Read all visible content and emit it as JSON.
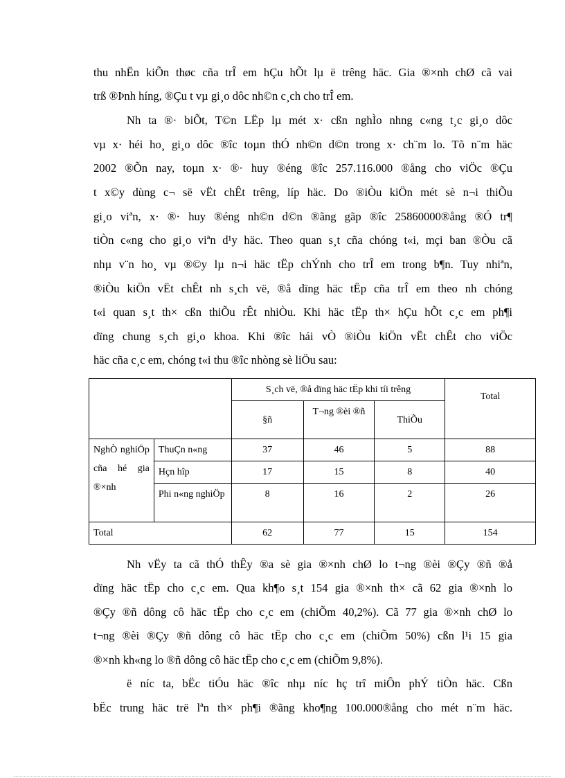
{
  "paragraph1": [
    "thu nhËn kiÕn thøc cña trÎ em hÇu hÕt lµ ë tr­êng  häc. Gia ®×nh chØ cã vai",
    "trß ®Þnh h­íng,  ®Çu t­  vµ gi¸o dôc nh©n c¸ch cho trÎ em."
  ],
  "paragraph2": [
    "Nh­  ta ®· biÕt, T©n LËp lµ mét x· cßn nghÌo nh­ng  c«ng t¸c gi¸o dôc",
    "vµ x· héi ho¸ gi¸o dôc ®­îc  toµn thÓ nh©n d©n trong x· ch¨m lo. Tõ n¨m häc",
    "2002  ®Õn nay, toµn x· ®· huy ®éng ®­îc  257.116.000  ®ång cho viÖc ®Çu",
    "t­  x©y dùng c¬ së vËt chÊt tr­êng,  líp häc. Do ®iÒu kiÖn mét sè n¬i thiÕu",
    "gi¸o viªn, x· ®· huy ®éng nh©n d©n ®ãng gãp ®­îc  25860000®ång  ®Ó tr¶",
    "tiÒn c«ng cho gi¸o viªn  d¹y häc. Theo quan s¸t cña chóng t«i, mçi ban ®Òu cã",
    "nhµ v¨n ho¸ vµ ®©y lµ n¬i häc tËp chÝnh cho trÎ em trong b¶n. Tuy nhiªn,",
    "®iÒu kiÖn vËt chÊt nh­  s¸ch vë, ®å dïng häc tËp cña trÎ em theo nh­  chóng",
    "t«i quan s¸t th× cßn thiÕu rÊt nhiÒu.  Khi häc tËp th× hÇu hÕt c¸c em ph¶i",
    "dïng chung  s¸ch gi¸o khoa.  Khi ®­îc  hái vÒ ®iÒu kiÖn  vËt chÊt cho viÖc",
    "häc cña c¸c em, chóng t«i thu ®­îc  nhòng sè liÖu sau:"
  ],
  "table": {
    "group_header": "S¸ch vë, ®å dïng häc tËp khi tíi tr­êng",
    "col_headers": [
      "§ñ",
      "T­¬ng  ®èi ®ñ",
      "ThiÕu"
    ],
    "total_header": "Total",
    "row_group_label": "NghÒ nghiÖp cña hé gia ®×nh",
    "rows": [
      {
        "label": "ThuÇn n«ng",
        "values": [
          "37",
          "46",
          "5",
          "88"
        ]
      },
      {
        "label": "Hçn hîp",
        "values": [
          "17",
          "15",
          "8",
          "40"
        ]
      },
      {
        "label": "Phi n«ng nghiÖp",
        "values": [
          "8",
          "16",
          "2",
          "26"
        ]
      }
    ],
    "total_row": {
      "label": "Total",
      "values": [
        "62",
        "77",
        "15",
        "154"
      ]
    }
  },
  "paragraph3": [
    "Nh­  vËy ta cã thÓ thÊy ®a sè gia ®×nh chØ lo t­¬ng  ®èi ®Çy ®ñ ®å",
    "dïng häc tËp cho c¸c em.  Qua kh¶o s¸t 154  gia  ®×nh th× cã 62 gia  ®×nh lo",
    "®Çy ®ñ dông cô häc tËp cho c¸c em (chiÕm 40,2%). Cã 77 gia ®×nh chØ lo",
    "t­¬ng  ®èi ®Çy ®ñ dông cô häc tËp cho c¸c em (chiÕm 50%) cßn l¹i 15 gia",
    "®×nh kh«ng lo ®ñ dông cô häc tËp cho c¸c em (chiÕm 9,8%)."
  ],
  "paragraph4": [
    "ë n­íc  ta, bËc tiÓu häc ®­îc  nhµ n­íc  hç trî miÔn phÝ tiÒn häc. Cßn",
    "bËc trung häc trë lªn th× ph¶i ®ãng kho¶ng 100.000®ång  cho mét n¨m häc."
  ]
}
